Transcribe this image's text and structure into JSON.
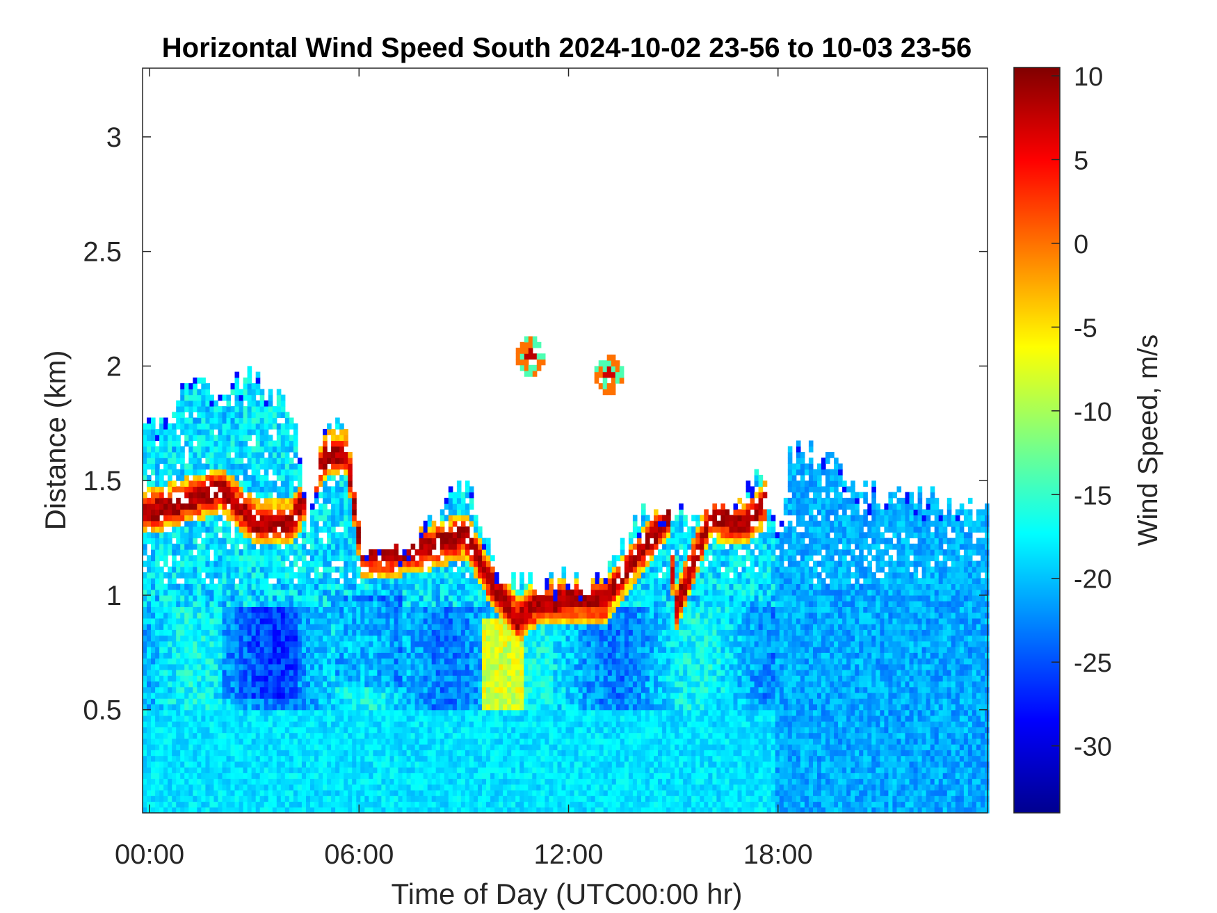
{
  "chart_data": {
    "type": "heatmap",
    "title": "Horizontal Wind Speed South 2024-10-02 23-56 to 10-03 23-56",
    "xlabel": "Time of Day (UTC00:00 hr)",
    "ylabel": "Distance (km)",
    "colorbar_label": "Wind Speed, m/s",
    "colormap": "jet",
    "xlim_hours": [
      -0.2,
      24.0
    ],
    "ylim_km": [
      0.05,
      3.3
    ],
    "clim": [
      -34,
      10.5
    ],
    "x_ticks": [
      {
        "value": 0,
        "label": "00:00"
      },
      {
        "value": 6,
        "label": "06:00"
      },
      {
        "value": 12,
        "label": "12:00"
      },
      {
        "value": 18,
        "label": "18:00"
      }
    ],
    "y_ticks": [
      {
        "value": 0.5,
        "label": "0.5"
      },
      {
        "value": 1.0,
        "label": "1"
      },
      {
        "value": 1.5,
        "label": "1.5"
      },
      {
        "value": 2.0,
        "label": "2"
      },
      {
        "value": 2.5,
        "label": "2.5"
      },
      {
        "value": 3.0,
        "label": "3"
      }
    ],
    "colorbar_ticks": [
      {
        "value": 10,
        "label": "10"
      },
      {
        "value": 5,
        "label": "5"
      },
      {
        "value": 0,
        "label": "0"
      },
      {
        "value": -5,
        "label": "-5"
      },
      {
        "value": -10,
        "label": "-10"
      },
      {
        "value": -15,
        "label": "-15"
      },
      {
        "value": -20,
        "label": "-20"
      },
      {
        "value": -25,
        "label": "-25"
      },
      {
        "value": -30,
        "label": "-30"
      }
    ],
    "grid": false,
    "data_top_profile_km": [
      [
        -0.15,
        1.7
      ],
      [
        0.5,
        1.75
      ],
      [
        1.0,
        1.9
      ],
      [
        2.0,
        1.9
      ],
      [
        2.8,
        1.95
      ],
      [
        3.5,
        1.85
      ],
      [
        4.1,
        1.8
      ],
      [
        4.5,
        1.3
      ],
      [
        5.0,
        1.75
      ],
      [
        5.5,
        1.78
      ],
      [
        6.0,
        1.2
      ],
      [
        7.0,
        1.2
      ],
      [
        8.0,
        1.28
      ],
      [
        9.0,
        1.5
      ],
      [
        10.0,
        1.05
      ],
      [
        11.0,
        1.05
      ],
      [
        12.0,
        1.05
      ],
      [
        13.0,
        1.03
      ],
      [
        14.0,
        1.35
      ],
      [
        14.8,
        1.35
      ],
      [
        15.5,
        1.35
      ],
      [
        16.5,
        1.37
      ],
      [
        17.5,
        1.52
      ],
      [
        18.0,
        1.25
      ],
      [
        18.3,
        1.62
      ],
      [
        19.0,
        1.6
      ],
      [
        20.0,
        1.5
      ],
      [
        21.0,
        1.42
      ],
      [
        22.0,
        1.4
      ],
      [
        23.0,
        1.38
      ],
      [
        24.0,
        1.32
      ]
    ],
    "jet_band_km": [
      [
        -0.15,
        1.35
      ],
      [
        1.0,
        1.4
      ],
      [
        2.0,
        1.45
      ],
      [
        3.0,
        1.3
      ],
      [
        4.0,
        1.3
      ],
      [
        5.0,
        1.6
      ],
      [
        5.6,
        1.6
      ],
      [
        6.0,
        1.17
      ],
      [
        7.0,
        1.17
      ],
      [
        8.0,
        1.2
      ],
      [
        9.0,
        1.25
      ],
      [
        9.7,
        1.05
      ],
      [
        10.5,
        0.88
      ],
      [
        11.0,
        0.95
      ],
      [
        12.0,
        0.97
      ],
      [
        13.0,
        0.97
      ],
      [
        14.0,
        1.18
      ],
      [
        14.8,
        1.33
      ],
      [
        15.0,
        0.92
      ],
      [
        16.0,
        1.33
      ],
      [
        17.0,
        1.3
      ],
      [
        17.6,
        1.4
      ]
    ],
    "isolated_cells": [
      {
        "x_hours": 10.85,
        "y_km": 2.03,
        "value": 8
      },
      {
        "x_hours": 13.1,
        "y_km": 1.95,
        "value": 7
      }
    ]
  }
}
